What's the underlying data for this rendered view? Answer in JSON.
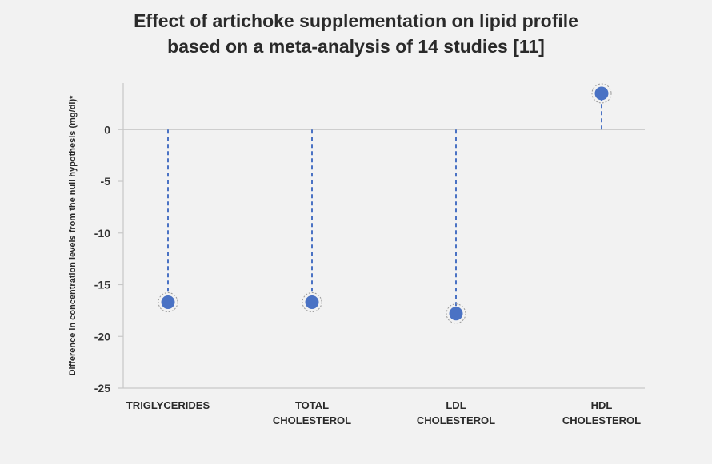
{
  "chart_data": {
    "type": "lollipop",
    "title_lines": [
      "Effect of artichoke supplementation on lipid profile",
      "based on a meta-analysis of 14 studies [11]"
    ],
    "ylabel": "Difference in concentration levels from the null hypothesis (mg/dl)*",
    "xlabel": "",
    "ylim": [
      -25,
      4.5
    ],
    "yticks": [
      0,
      -5,
      -10,
      -15,
      -20,
      -25
    ],
    "ytick_labels": [
      "0",
      "-5",
      "-10",
      "-15",
      "-20",
      "-25"
    ],
    "baseline": 0,
    "grid": false,
    "categories": [
      [
        "TRIGLYCERIDES"
      ],
      [
        "TOTAL",
        "CHOLESTEROL"
      ],
      [
        "LDL",
        "CHOLESTEROL"
      ],
      [
        "HDL",
        "CHOLESTEROL"
      ]
    ],
    "values": [
      -16.7,
      -16.7,
      -17.8,
      3.5
    ],
    "colors": {
      "marker": "#4a72c4",
      "stem": "#4a72c4",
      "axis": "#c8c8c8",
      "halo": "#9a9a9a"
    }
  }
}
